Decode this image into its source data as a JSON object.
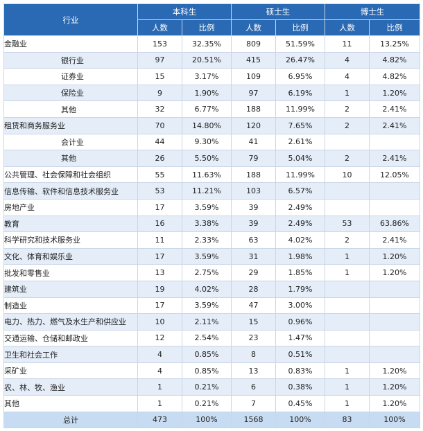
{
  "header": {
    "industry": "行业",
    "groups": [
      "本科生",
      "硕士生",
      "博士生"
    ],
    "sub": [
      "人数",
      "比例"
    ]
  },
  "rows": [
    {
      "name": "金融业",
      "sub": false,
      "v": [
        "153",
        "32.35%",
        "809",
        "51.59%",
        "11",
        "13.25%"
      ]
    },
    {
      "name": "银行业",
      "sub": true,
      "v": [
        "97",
        "20.51%",
        "415",
        "26.47%",
        "4",
        "4.82%"
      ]
    },
    {
      "name": "证券业",
      "sub": true,
      "v": [
        "15",
        "3.17%",
        "109",
        "6.95%",
        "4",
        "4.82%"
      ]
    },
    {
      "name": "保险业",
      "sub": true,
      "v": [
        "9",
        "1.90%",
        "97",
        "6.19%",
        "1",
        "1.20%"
      ]
    },
    {
      "name": "其他",
      "sub": true,
      "v": [
        "32",
        "6.77%",
        "188",
        "11.99%",
        "2",
        "2.41%"
      ]
    },
    {
      "name": "租赁和商务服务业",
      "sub": false,
      "v": [
        "70",
        "14.80%",
        "120",
        "7.65%",
        "2",
        "2.41%"
      ]
    },
    {
      "name": "会计业",
      "sub": true,
      "v": [
        "44",
        "9.30%",
        "41",
        "2.61%",
        "",
        ""
      ]
    },
    {
      "name": "其他",
      "sub": true,
      "v": [
        "26",
        "5.50%",
        "79",
        "5.04%",
        "2",
        "2.41%"
      ]
    },
    {
      "name": "公共管理、社会保障和社会组织",
      "sub": false,
      "v": [
        "55",
        "11.63%",
        "188",
        "11.99%",
        "10",
        "12.05%"
      ]
    },
    {
      "name": "信息传输、软件和信息技术服务业",
      "sub": false,
      "v": [
        "53",
        "11.21%",
        "103",
        "6.57%",
        "",
        ""
      ]
    },
    {
      "name": "房地产业",
      "sub": false,
      "v": [
        "17",
        "3.59%",
        "39",
        "2.49%",
        "",
        ""
      ]
    },
    {
      "name": "教育",
      "sub": false,
      "v": [
        "16",
        "3.38%",
        "39",
        "2.49%",
        "53",
        "63.86%"
      ]
    },
    {
      "name": "科学研究和技术服务业",
      "sub": false,
      "v": [
        "11",
        "2.33%",
        "63",
        "4.02%",
        "2",
        "2.41%"
      ]
    },
    {
      "name": "文化、体育和娱乐业",
      "sub": false,
      "v": [
        "17",
        "3.59%",
        "31",
        "1.98%",
        "1",
        "1.20%"
      ]
    },
    {
      "name": "批发和零售业",
      "sub": false,
      "v": [
        "13",
        "2.75%",
        "29",
        "1.85%",
        "1",
        "1.20%"
      ]
    },
    {
      "name": "建筑业",
      "sub": false,
      "v": [
        "19",
        "4.02%",
        "28",
        "1.79%",
        "",
        ""
      ]
    },
    {
      "name": "制造业",
      "sub": false,
      "v": [
        "17",
        "3.59%",
        "47",
        "3.00%",
        "",
        ""
      ]
    },
    {
      "name": "电力、热力、燃气及水生产和供应业",
      "sub": false,
      "v": [
        "10",
        "2.11%",
        "15",
        "0.96%",
        "",
        ""
      ]
    },
    {
      "name": "交通运输、仓储和邮政业",
      "sub": false,
      "v": [
        "12",
        "2.54%",
        "23",
        "1.47%",
        "",
        ""
      ]
    },
    {
      "name": "卫生和社会工作",
      "sub": false,
      "v": [
        "4",
        "0.85%",
        "8",
        "0.51%",
        "",
        ""
      ]
    },
    {
      "name": "采矿业",
      "sub": false,
      "v": [
        "4",
        "0.85%",
        "13",
        "0.83%",
        "1",
        "1.20%"
      ]
    },
    {
      "name": "农、林、牧、渔业",
      "sub": false,
      "v": [
        "1",
        "0.21%",
        "6",
        "0.38%",
        "1",
        "1.20%"
      ]
    },
    {
      "name": "其他",
      "sub": false,
      "v": [
        "1",
        "0.21%",
        "7",
        "0.45%",
        "1",
        "1.20%"
      ]
    }
  ],
  "total": {
    "label": "总计",
    "v": [
      "473",
      "100%",
      "1568",
      "100%",
      "83",
      "100%"
    ]
  },
  "colors": {
    "header_bg": "#2a6ab4",
    "row_shade": "#e4edf8",
    "total_bg": "#c7dcf2",
    "border": "#c9d6e6"
  }
}
